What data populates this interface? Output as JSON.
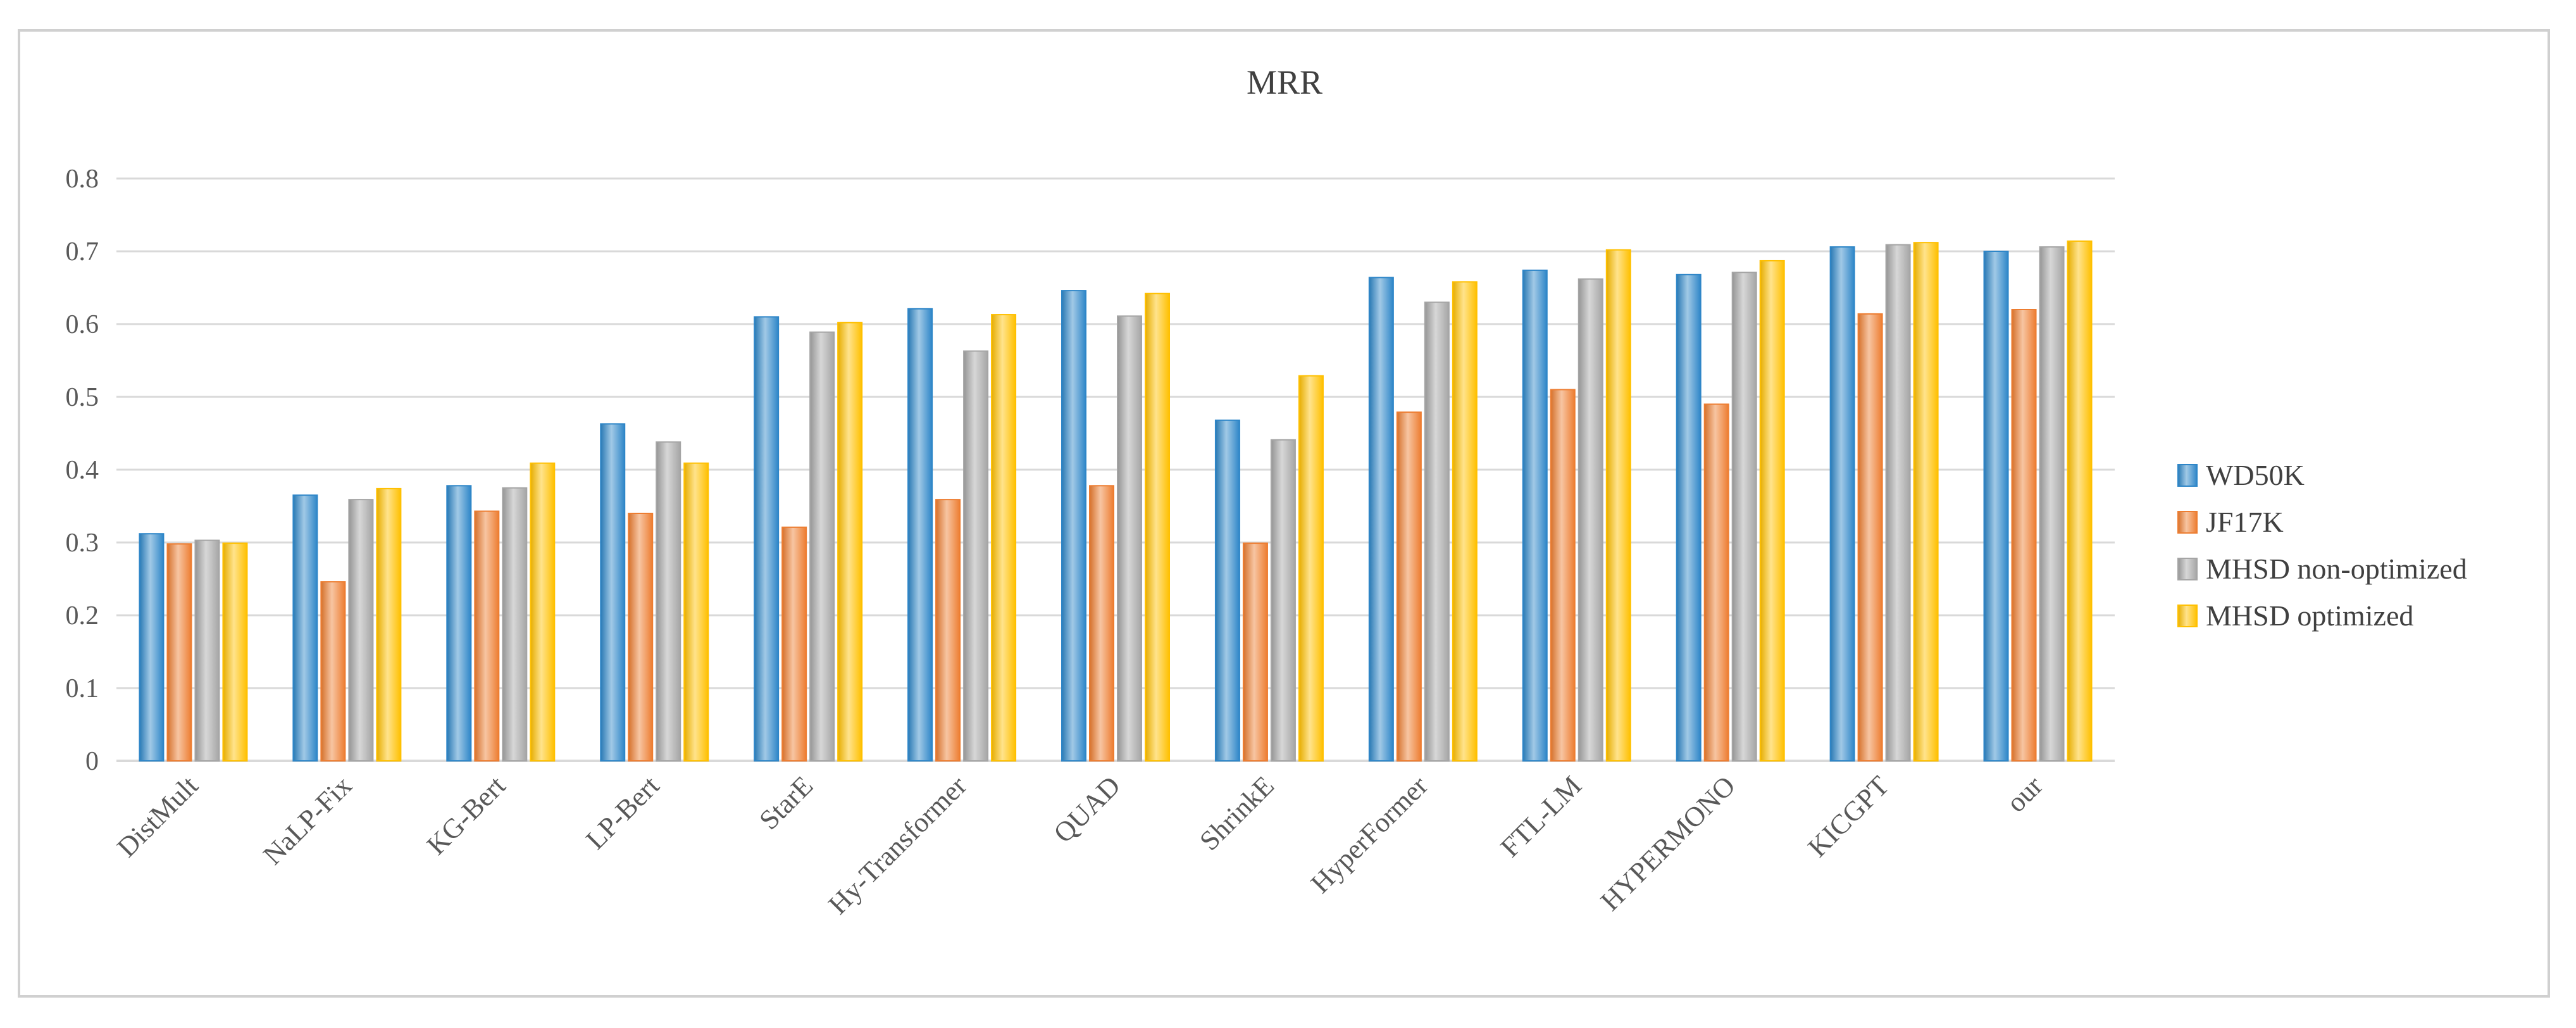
{
  "chart_data": {
    "type": "bar",
    "title": "MRR",
    "xlabel": "",
    "ylabel": "",
    "ylim": [
      0,
      0.8
    ],
    "yticks": [
      "0",
      "0.1",
      "0.2",
      "0.3",
      "0.4",
      "0.5",
      "0.6",
      "0.7",
      "0.8"
    ],
    "grid": true,
    "legend_position": "right",
    "categories": [
      "DistMult",
      "NaLP-Fix",
      "KG-Bert",
      "LP-Bert",
      "StarE",
      "Hy-Transformer",
      "QUAD",
      "ShrinkE",
      "HyperFormer",
      "FTL-LM",
      "HYPERMONO",
      "KICGPT",
      "our"
    ],
    "series": [
      {
        "name": "WD50K",
        "color": "#2e86c8",
        "values": [
          0.312,
          0.365,
          0.378,
          0.463,
          0.61,
          0.621,
          0.646,
          0.468,
          0.664,
          0.674,
          0.668,
          0.706,
          0.7
        ]
      },
      {
        "name": "JF17K",
        "color": "#ed7d31",
        "values": [
          0.298,
          0.246,
          0.343,
          0.34,
          0.321,
          0.359,
          0.378,
          0.299,
          0.479,
          0.51,
          0.49,
          0.614,
          0.62
        ]
      },
      {
        "name": "MHSD non-optimized",
        "color": "#a5a5a5",
        "values": [
          0.303,
          0.359,
          0.375,
          0.438,
          0.589,
          0.563,
          0.611,
          0.441,
          0.63,
          0.662,
          0.671,
          0.709,
          0.706
        ]
      },
      {
        "name": "MHSD optimized",
        "color": "#ffc000",
        "values": [
          0.299,
          0.374,
          0.409,
          0.409,
          0.602,
          0.613,
          0.642,
          0.529,
          0.658,
          0.702,
          0.687,
          0.712,
          0.714
        ]
      }
    ]
  }
}
